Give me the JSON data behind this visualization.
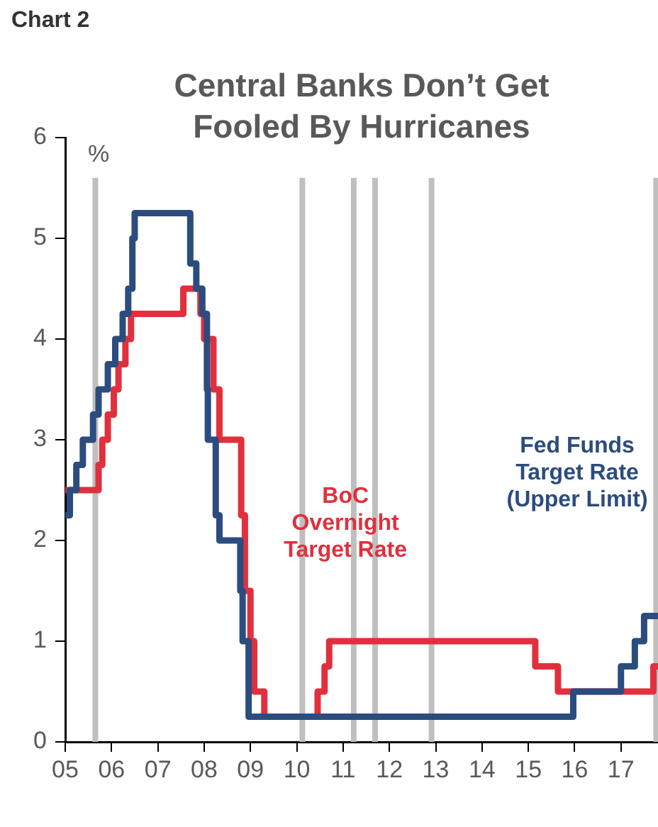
{
  "chart_data": {
    "type": "step",
    "title": "Central Banks Don’t Get Fooled By Hurricanes",
    "ylabel": "%",
    "annotations": [
      "Chart 2"
    ],
    "xlim": [
      2005,
      2017.8
    ],
    "ylim": [
      0,
      6
    ],
    "yticks": [
      0,
      1,
      2,
      3,
      4,
      5,
      6
    ],
    "series": [
      {
        "name": "Fed Funds Target Rate (Upper Limit)",
        "color": "#2b4c7e",
        "x": [
          2005.0,
          2005.1,
          2005.24,
          2005.38,
          2005.6,
          2005.72,
          2005.92,
          2006.08,
          2006.24,
          2006.36,
          2006.45,
          2006.5,
          2007.7,
          2007.83,
          2007.96,
          2008.06,
          2008.08,
          2008.25,
          2008.33,
          2008.78,
          2008.83,
          2008.96,
          2015.97,
          2017.0,
          2017.3,
          2017.5,
          2017.8
        ],
        "values": [
          2.25,
          2.5,
          2.75,
          3.0,
          3.25,
          3.5,
          3.75,
          4.0,
          4.25,
          4.5,
          5.0,
          5.25,
          4.75,
          4.5,
          4.25,
          3.5,
          3.0,
          2.25,
          2.0,
          1.5,
          1.0,
          0.25,
          0.5,
          0.75,
          1.0,
          1.25,
          1.25
        ]
      },
      {
        "name": "BoC Overnight Target Rate",
        "color": "#e0303e",
        "x": [
          2005.0,
          2005.72,
          2005.8,
          2005.92,
          2006.05,
          2006.15,
          2006.3,
          2006.42,
          2007.55,
          2007.92,
          2008.0,
          2008.2,
          2008.33,
          2008.8,
          2008.88,
          2009.0,
          2009.08,
          2009.3,
          2010.45,
          2010.6,
          2010.7,
          2015.15,
          2015.64,
          2017.7,
          2017.8
        ],
        "values": [
          2.5,
          2.75,
          3.0,
          3.25,
          3.5,
          3.75,
          4.0,
          4.25,
          4.5,
          4.25,
          4.0,
          3.5,
          3.0,
          2.25,
          1.5,
          1.0,
          0.5,
          0.25,
          0.5,
          0.75,
          1.0,
          0.75,
          0.5,
          0.75,
          0.75
        ]
      }
    ],
    "ref_lines": [
      {
        "axis": "x",
        "value": 2005.65,
        "color": "#bfbfbf"
      },
      {
        "axis": "x",
        "value": 2010.12,
        "color": "#bfbfbf"
      },
      {
        "axis": "x",
        "value": 2011.23,
        "color": "#bfbfbf"
      },
      {
        "axis": "x",
        "value": 2011.69,
        "color": "#bfbfbf"
      },
      {
        "axis": "x",
        "value": 2012.91,
        "color": "#bfbfbf"
      },
      {
        "axis": "x",
        "value": 2017.76,
        "color": "#bfbfbf"
      }
    ],
    "xticks": [
      {
        "value": 2005,
        "label": "05"
      },
      {
        "value": 2006,
        "label": "06"
      },
      {
        "value": 2007,
        "label": "07"
      },
      {
        "value": 2008,
        "label": "08"
      },
      {
        "value": 2009,
        "label": "09"
      },
      {
        "value": 2010,
        "label": "10"
      },
      {
        "value": 2011,
        "label": "11"
      },
      {
        "value": 2012,
        "label": "12"
      },
      {
        "value": 2013,
        "label": "13"
      },
      {
        "value": 2014,
        "label": "14"
      },
      {
        "value": 2015,
        "label": "15"
      },
      {
        "value": 2016,
        "label": "16"
      },
      {
        "value": 2017,
        "label": "17"
      }
    ]
  }
}
